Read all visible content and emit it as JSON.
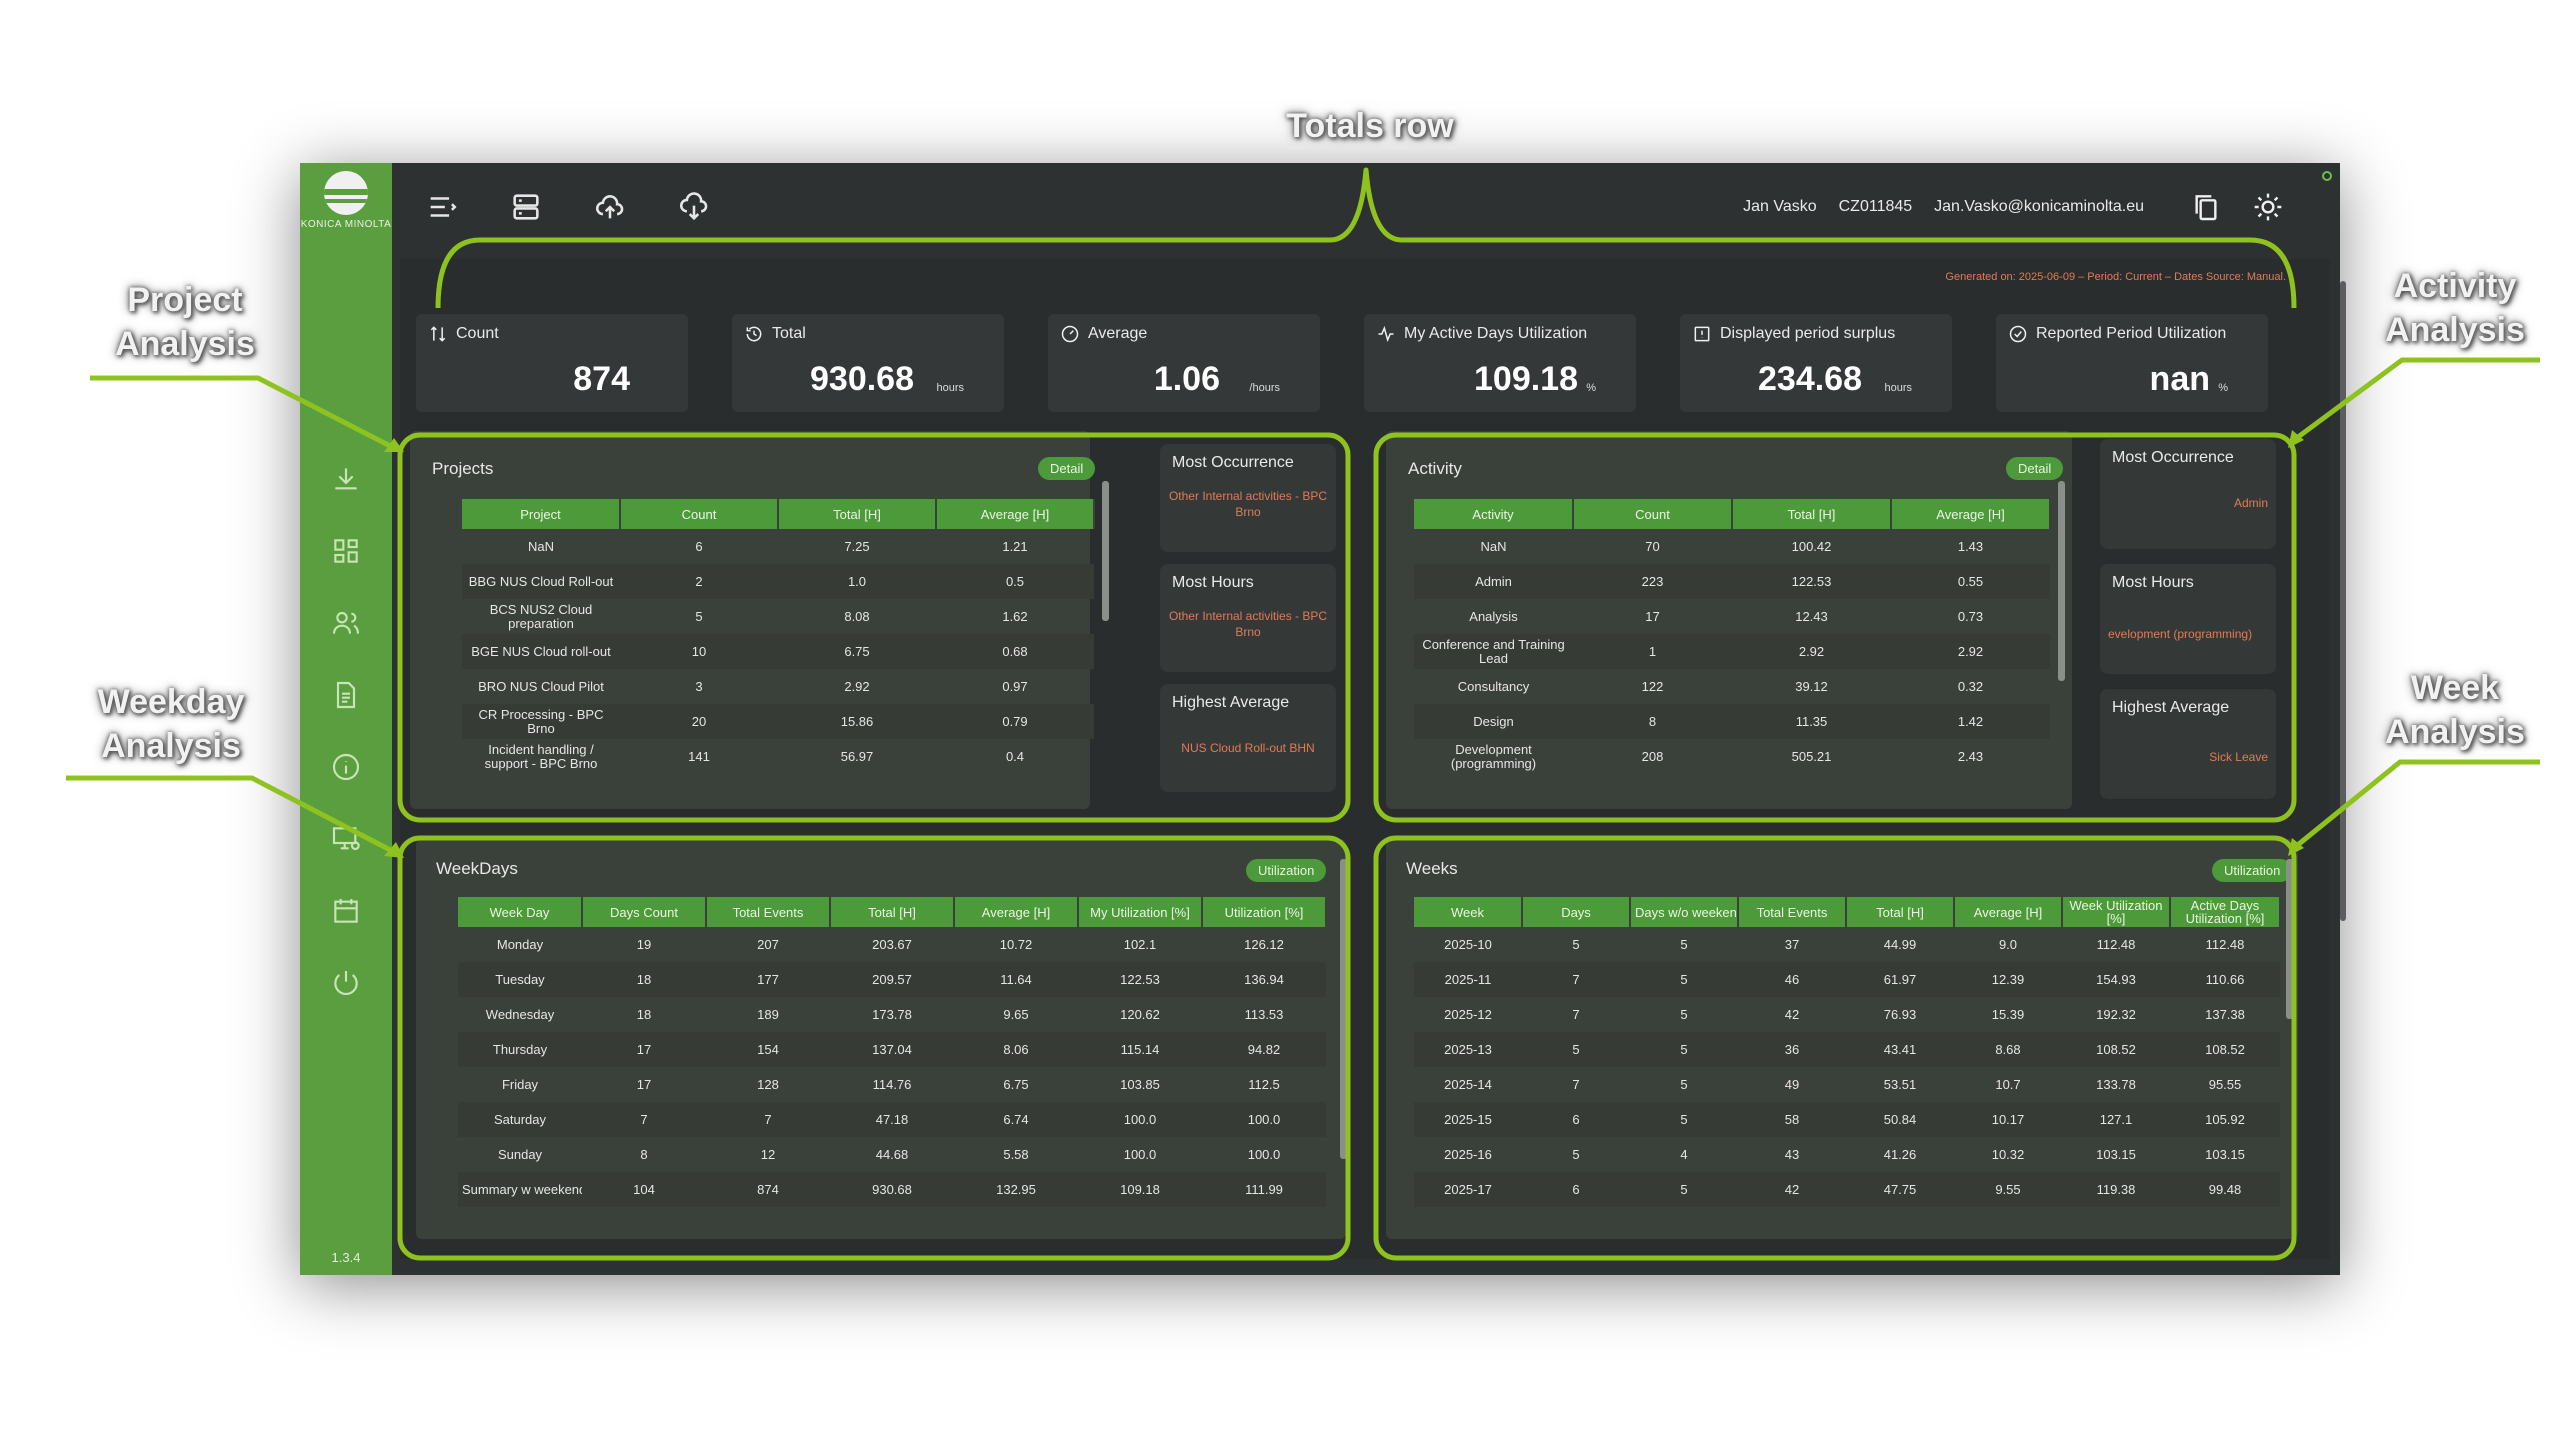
{
  "annotations": {
    "totals": "Totals row",
    "project": "Project Analysis",
    "activity": "Activity Analysis",
    "weekday": "Weekday Analysis",
    "week": "Week Analysis"
  },
  "sidebar": {
    "logo_text": "KONICA MINOLTA",
    "version": "1.3.4",
    "icons": [
      "download-icon",
      "dashboard-icon",
      "users-icon",
      "document-icon",
      "info-icon",
      "monitor-settings-icon",
      "calendar-icon",
      "power-icon"
    ]
  },
  "topbar": {
    "icons": [
      "menu-icon",
      "server-icon",
      "cloud-upload-icon",
      "cloud-download-icon"
    ],
    "user_name": "Jan Vasko",
    "user_id": "CZ011845",
    "user_email": "Jan.Vasko@konicaminolta.eu",
    "right_icons": [
      "copy-icon",
      "theme-sun-icon"
    ]
  },
  "generated": "Generated on: 2025-06-09 – Period: Current – Dates Source: Manual.",
  "cards": [
    {
      "label": "Count",
      "value": "874",
      "unit": "",
      "icon": "sort-icon"
    },
    {
      "label": "Total",
      "value": "930.68",
      "unit": "hours",
      "icon": "history-icon"
    },
    {
      "label": "Average",
      "value": "1.06",
      "unit": "/hours",
      "icon": "gauge-icon"
    },
    {
      "label": "My Active Days Utilization",
      "value": "109.18",
      "unit": "%",
      "icon": "activity-icon"
    },
    {
      "label": "Displayed period surplus",
      "value": "234.68",
      "unit": "hours",
      "icon": "report-icon"
    },
    {
      "label": "Reported Period Utilization",
      "value": "nan",
      "unit": "%",
      "icon": "check-circle-icon"
    }
  ],
  "projects": {
    "title": "Projects",
    "button": "Detail",
    "headers": [
      "Project",
      "Count",
      "Total [H]",
      "Average [H]"
    ],
    "rows": [
      [
        "NaN",
        "6",
        "7.25",
        "1.21"
      ],
      [
        "BBG NUS Cloud Roll-out",
        "2",
        "1.0",
        "0.5"
      ],
      [
        "BCS NUS2 Cloud preparation",
        "5",
        "8.08",
        "1.62"
      ],
      [
        "BGE NUS Cloud roll-out",
        "10",
        "6.75",
        "0.68"
      ],
      [
        "BRO NUS Cloud Pilot",
        "3",
        "2.92",
        "0.97"
      ],
      [
        "CR Processing - BPC Brno",
        "20",
        "15.86",
        "0.79"
      ],
      [
        "Incident handling / support - BPC Brno",
        "141",
        "56.97",
        "0.4"
      ]
    ],
    "side": [
      {
        "title": "Most Occurrence",
        "value": "Other Internal activities - BPC Brno"
      },
      {
        "title": "Most Hours",
        "value": "Other Internal activities - BPC Brno"
      },
      {
        "title": "Highest Average",
        "value": "NUS Cloud Roll-out BHN"
      }
    ]
  },
  "activity": {
    "title": "Activity",
    "button": "Detail",
    "headers": [
      "Activity",
      "Count",
      "Total [H]",
      "Average [H]"
    ],
    "rows": [
      [
        "NaN",
        "70",
        "100.42",
        "1.43"
      ],
      [
        "Admin",
        "223",
        "122.53",
        "0.55"
      ],
      [
        "Analysis",
        "17",
        "12.43",
        "0.73"
      ],
      [
        "Conference and Training Lead",
        "1",
        "2.92",
        "2.92"
      ],
      [
        "Consultancy",
        "122",
        "39.12",
        "0.32"
      ],
      [
        "Design",
        "8",
        "11.35",
        "1.42"
      ],
      [
        "Development (programming)",
        "208",
        "505.21",
        "2.43"
      ]
    ],
    "side": [
      {
        "title": "Most Occurrence",
        "value": "Admin"
      },
      {
        "title": "Most Hours",
        "value": "evelopment (programming)"
      },
      {
        "title": "Highest Average",
        "value": "Sick Leave"
      }
    ]
  },
  "weekdays": {
    "title": "WeekDays",
    "button": "Utilization",
    "headers": [
      "Week Day",
      "Days Count",
      "Total Events",
      "Total [H]",
      "Average [H]",
      "My Utilization [%]",
      "Utilization [%]"
    ],
    "rows": [
      [
        "Monday",
        "19",
        "207",
        "203.67",
        "10.72",
        "102.1",
        "126.12"
      ],
      [
        "Tuesday",
        "18",
        "177",
        "209.57",
        "11.64",
        "122.53",
        "136.94"
      ],
      [
        "Wednesday",
        "18",
        "189",
        "173.78",
        "9.65",
        "120.62",
        "113.53"
      ],
      [
        "Thursday",
        "17",
        "154",
        "137.04",
        "8.06",
        "115.14",
        "94.82"
      ],
      [
        "Friday",
        "17",
        "128",
        "114.76",
        "6.75",
        "103.85",
        "112.5"
      ],
      [
        "Saturday",
        "7",
        "7",
        "47.18",
        "6.74",
        "100.0",
        "100.0"
      ],
      [
        "Sunday",
        "8",
        "12",
        "44.68",
        "5.58",
        "100.0",
        "100.0"
      ],
      [
        "Summary w weekend",
        "104",
        "874",
        "930.68",
        "132.95",
        "109.18",
        "111.99"
      ]
    ]
  },
  "weeks": {
    "title": "Weeks",
    "button": "Utilization",
    "headers": [
      "Week",
      "Days",
      "Days w/o weekend",
      "Total Events",
      "Total [H]",
      "Average [H]",
      "Week Utilization [%]",
      "Active Days Utilization [%]"
    ],
    "rows": [
      [
        "2025-10",
        "5",
        "5",
        "37",
        "44.99",
        "9.0",
        "112.48",
        "112.48"
      ],
      [
        "2025-11",
        "7",
        "5",
        "46",
        "61.97",
        "12.39",
        "154.93",
        "110.66"
      ],
      [
        "2025-12",
        "7",
        "5",
        "42",
        "76.93",
        "15.39",
        "192.32",
        "137.38"
      ],
      [
        "2025-13",
        "5",
        "5",
        "36",
        "43.41",
        "8.68",
        "108.52",
        "108.52"
      ],
      [
        "2025-14",
        "7",
        "5",
        "49",
        "53.51",
        "10.7",
        "133.78",
        "95.55"
      ],
      [
        "2025-15",
        "6",
        "5",
        "58",
        "50.84",
        "10.17",
        "127.1",
        "105.92"
      ],
      [
        "2025-16",
        "5",
        "4",
        "43",
        "41.26",
        "10.32",
        "103.15",
        "103.15"
      ],
      [
        "2025-17",
        "6",
        "5",
        "42",
        "47.75",
        "9.55",
        "119.38",
        "99.48"
      ]
    ]
  },
  "colors": {
    "sidebar": "#5b9e3f",
    "accent": "#4c9a3a",
    "highlight": "#8ec31f",
    "background": "#2e3131",
    "warning_text": "#e27a55"
  }
}
